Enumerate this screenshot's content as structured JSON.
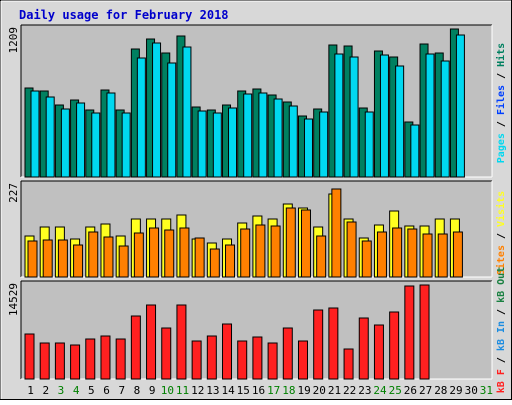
{
  "title": "Daily usage for February 2018",
  "colors": {
    "background": "#d8d8d8",
    "plot_background": "#c0c0c0",
    "title": "#0000cc",
    "pages": "#008060",
    "files": "#0040ff",
    "hits": "#00d8f0",
    "visits": "#ffff20",
    "sites": "#ff8000",
    "kbin": "#1c8ce0",
    "kbout": "#188040",
    "kbf": "#ff2020",
    "weekend_tick": "#008000",
    "weekday_tick": "#000000"
  },
  "right_labels": {
    "hits_panel": [
      {
        "text": "Pages",
        "color_key": "hits"
      },
      {
        "text": " / ",
        "color_key": "weekday_tick"
      },
      {
        "text": "Files",
        "color_key": "files"
      },
      {
        "text": " / ",
        "color_key": "weekday_tick"
      },
      {
        "text": "Hits",
        "color_key": "pages"
      }
    ],
    "visits_panel": [
      {
        "text": "Sites",
        "color_key": "sites"
      },
      {
        "text": " / ",
        "color_key": "weekday_tick"
      },
      {
        "text": "Visits",
        "color_key": "visits"
      }
    ],
    "kbytes_panel": [
      {
        "text": "kB F",
        "color_key": "kbf"
      },
      {
        "text": " / ",
        "color_key": "weekday_tick"
      },
      {
        "text": "kB In",
        "color_key": "kbin"
      },
      {
        "text": " / ",
        "color_key": "weekday_tick"
      },
      {
        "text": "kB Out",
        "color_key": "kbout"
      }
    ]
  },
  "chart_data": {
    "type": "bar",
    "title": "Daily usage for February 2018",
    "x": [
      "1",
      "2",
      "3",
      "4",
      "5",
      "6",
      "7",
      "8",
      "9",
      "10",
      "11",
      "12",
      "13",
      "14",
      "15",
      "16",
      "17",
      "18",
      "19",
      "20",
      "21",
      "22",
      "23",
      "24",
      "25",
      "26",
      "27",
      "28",
      "29",
      "30",
      "31"
    ],
    "weekend_days": [
      "3",
      "4",
      "10",
      "11",
      "17",
      "18",
      "24",
      "25",
      "31"
    ],
    "panels": [
      {
        "name": "hits_panel",
        "ymax": 1209,
        "ymax_label": "1209",
        "series": [
          {
            "name": "Hits",
            "color_key": "pages",
            "values": [
              728,
              700,
              586,
              632,
              551,
              710,
              550,
              1043,
              1125,
              1009,
              1155,
              568,
              549,
              589,
              703,
              717,
              666,
              616,
              500,
              559,
              1078,
              1073,
              560,
              1026,
              979,
              448,
              1089,
              1014,
              1209,
              0,
              0
            ]
          },
          {
            "name": "Files",
            "color_key": "files",
            "values": [
              0,
              0,
              0,
              0,
              0,
              0,
              0,
              0,
              0,
              0,
              0,
              0,
              0,
              0,
              0,
              0,
              0,
              0,
              0,
              0,
              0,
              0,
              0,
              0,
              0,
              0,
              0,
              0,
              0,
              0,
              0
            ]
          },
          {
            "name": "Pages",
            "color_key": "hits",
            "values": [
              700,
              653,
              559,
              604,
              522,
              683,
              522,
              969,
              1098,
              933,
              1066,
              540,
              521,
              560,
              678,
              688,
              636,
              584,
              472,
              531,
              1002,
              980,
              528,
              997,
              908,
              421,
              1003,
              947,
              1158,
              0,
              0
            ]
          }
        ]
      },
      {
        "name": "visits_panel",
        "ymax": 227,
        "ymax_label": "227",
        "series": [
          {
            "name": "Visits",
            "color_key": "visits",
            "values": [
              100,
              123,
              123,
              93,
              123,
              130,
              102,
              144,
              144,
              144,
              154,
              93,
              84,
              93,
              134,
              150,
              144,
              181,
              170,
              123,
              204,
              144,
              97,
              129,
              164,
              126,
              126,
              144,
              144,
              0,
              0
            ]
          },
          {
            "name": "Sites",
            "color_key": "sites",
            "values": [
              88,
              91,
              91,
              79,
              110,
              99,
              76,
              109,
              121,
              116,
              121,
              96,
              69,
              79,
              118,
              129,
              125,
              171,
              166,
              100,
              218,
              135,
              88,
              111,
              120,
              119,
              107,
              106,
              111,
              0,
              0
            ]
          }
        ]
      },
      {
        "name": "kbytes_panel",
        "ymax": 14529,
        "ymax_label": "14529",
        "series": [
          {
            "name": "kB F",
            "color_key": "kbf",
            "values": [
              7000,
              5600,
              5600,
              5300,
              6200,
              6700,
              6200,
              9700,
              11500,
              7900,
              11500,
              5900,
              6700,
              8500,
              5900,
              6500,
              5600,
              7900,
              5900,
              10600,
              10900,
              4700,
              9400,
              8300,
              10400,
              14400,
              14529,
              0,
              0,
              0,
              0
            ]
          }
        ]
      }
    ]
  }
}
